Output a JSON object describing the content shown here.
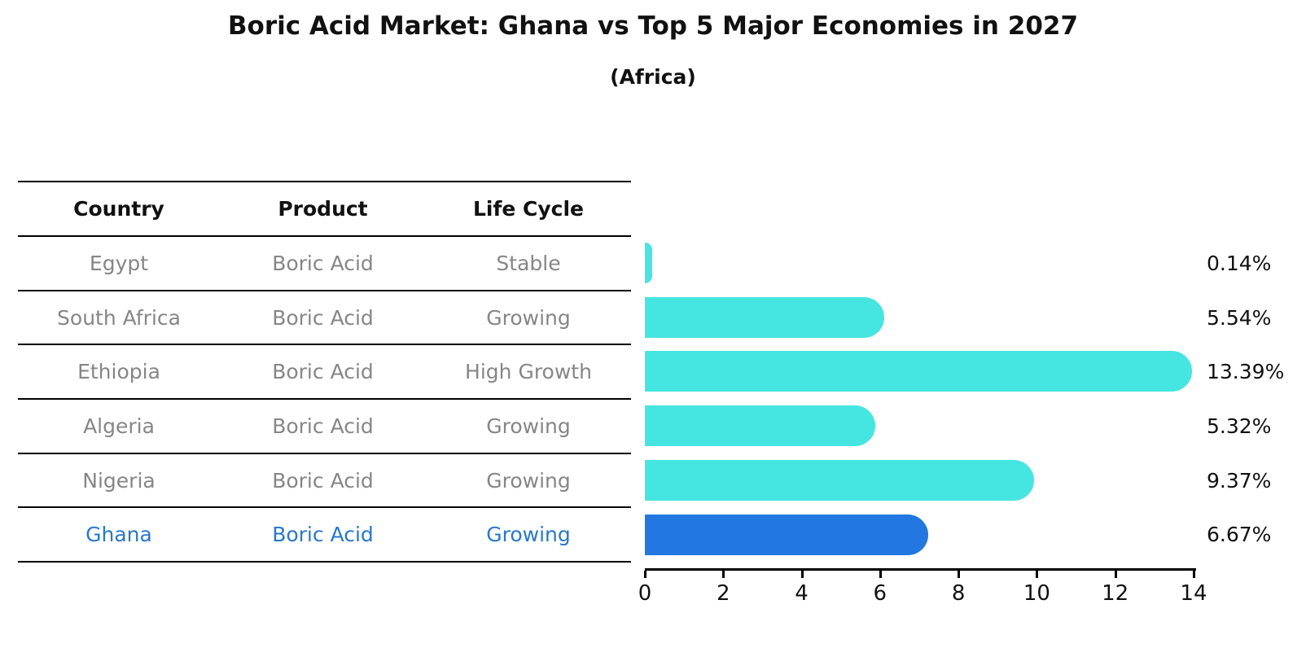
{
  "title": "Boric Acid Market: Ghana vs Top 5 Major Economies in 2027",
  "subtitle": "(Africa)",
  "table": {
    "headers": [
      "Country",
      "Product",
      "Life Cycle"
    ],
    "rows": [
      {
        "country": "Egypt",
        "product": "Boric Acid",
        "life_cycle": "Stable",
        "highlight": false
      },
      {
        "country": "South Africa",
        "product": "Boric Acid",
        "life_cycle": "Growing",
        "highlight": false
      },
      {
        "country": "Ethiopia",
        "product": "Boric Acid",
        "life_cycle": "High Growth",
        "highlight": false
      },
      {
        "country": "Algeria",
        "product": "Boric Acid",
        "life_cycle": "Growing",
        "highlight": false
      },
      {
        "country": "Nigeria",
        "product": "Boric Acid",
        "life_cycle": "Growing",
        "highlight": false
      },
      {
        "country": "Ghana",
        "product": "Boric Acid",
        "life_cycle": "Growing",
        "highlight": true
      }
    ]
  },
  "chart_data": {
    "type": "bar",
    "orientation": "horizontal",
    "categories": [
      "Egypt",
      "South Africa",
      "Ethiopia",
      "Algeria",
      "Nigeria",
      "Ghana"
    ],
    "values": [
      0.14,
      5.54,
      13.39,
      5.32,
      9.37,
      6.67
    ],
    "value_labels": [
      "0.14%",
      "5.54%",
      "13.39%",
      "5.32%",
      "9.37%",
      "6.67%"
    ],
    "xlim": [
      0,
      14
    ],
    "x_ticks": [
      0,
      2,
      4,
      6,
      8,
      10,
      12,
      14
    ],
    "legend": "none",
    "grid": "off",
    "colors": {
      "bar": "#45E5E1",
      "highlight_bar": "#2277E0",
      "highlight_bar_border": "#2277E0",
      "highlight_text": "#2878CC",
      "row_text": "#868686",
      "header_text": "#111111"
    },
    "highlight_index": 5
  }
}
